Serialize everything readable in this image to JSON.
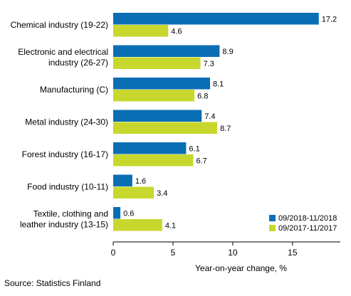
{
  "chart_data": {
    "type": "bar",
    "orientation": "horizontal",
    "categories": [
      [
        "Chemical industry (19-22)"
      ],
      [
        "Electronic and electrical",
        "industry (26-27)"
      ],
      [
        "Manufacturing (C)"
      ],
      [
        "Metal industry (24-30)"
      ],
      [
        "Forest industry (16-17)"
      ],
      [
        "Food industry (10-11)"
      ],
      [
        "Textile, clothing and",
        "leather industry (13-15)"
      ]
    ],
    "series": [
      {
        "name": "09/2018-11/2018",
        "color": "#0a6eb4",
        "values": [
          17.2,
          8.9,
          8.1,
          7.4,
          6.1,
          1.6,
          0.6
        ]
      },
      {
        "name": "09/2017-11/2017",
        "color": "#c8d72d",
        "values": [
          4.6,
          7.3,
          6.8,
          8.7,
          6.7,
          3.4,
          4.1
        ]
      }
    ],
    "value_labels": [
      [
        "17.2",
        "8.9",
        "8.1",
        "7.4",
        "6.1",
        "1.6",
        "0.6"
      ],
      [
        "4.6",
        "7.3",
        "6.8",
        "8.7",
        "6.7",
        "3.4",
        "4.1"
      ]
    ],
    "xlim": [
      0,
      19
    ],
    "xticks": [
      0,
      5,
      10,
      15
    ],
    "xtick_labels": [
      "0",
      "5",
      "10",
      "15"
    ],
    "xlabel": "Year-on-year change, %",
    "legend_position": "bottom-right",
    "grid": false
  },
  "source": "Source: Statistics Finland"
}
